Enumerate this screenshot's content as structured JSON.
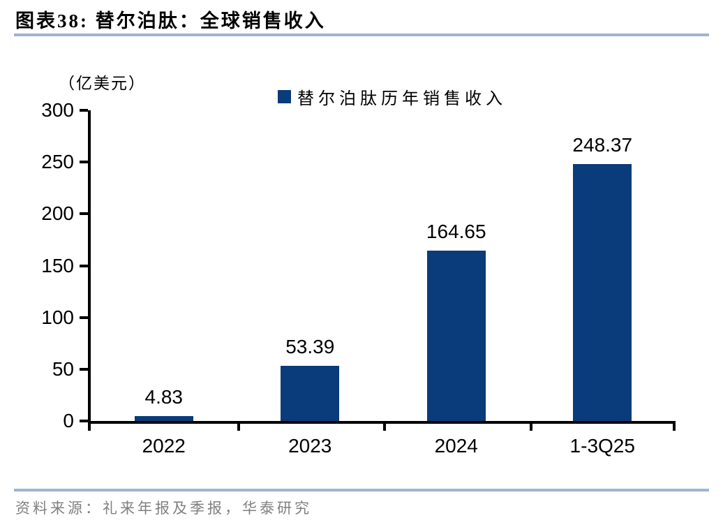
{
  "header": {
    "title": "图表38:  替尔泊肽：全球销售收入"
  },
  "chart_data": {
    "type": "bar",
    "title": "替尔泊肽：全球销售收入",
    "unit_label": "（亿美元）",
    "legend": "替尔泊肽历年销售收入",
    "legend_position": "top",
    "categories": [
      "2022",
      "2023",
      "2024",
      "1-3Q25"
    ],
    "values": [
      4.83,
      53.39,
      164.65,
      248.37
    ],
    "value_labels": [
      "4.83",
      "53.39",
      "164.65",
      "248.37"
    ],
    "xlabel": "",
    "ylabel": "（亿美元）",
    "ylim": [
      0,
      300
    ],
    "yticks": [
      0,
      50,
      100,
      150,
      200,
      250,
      300
    ],
    "grid": false
  },
  "footer": {
    "source": "资料来源：礼来年报及季报，华泰研究"
  },
  "colors": {
    "bar": "#0A3B7A",
    "rule": "#9FB4CD",
    "source_text": "#808080",
    "axis": "#000000"
  }
}
